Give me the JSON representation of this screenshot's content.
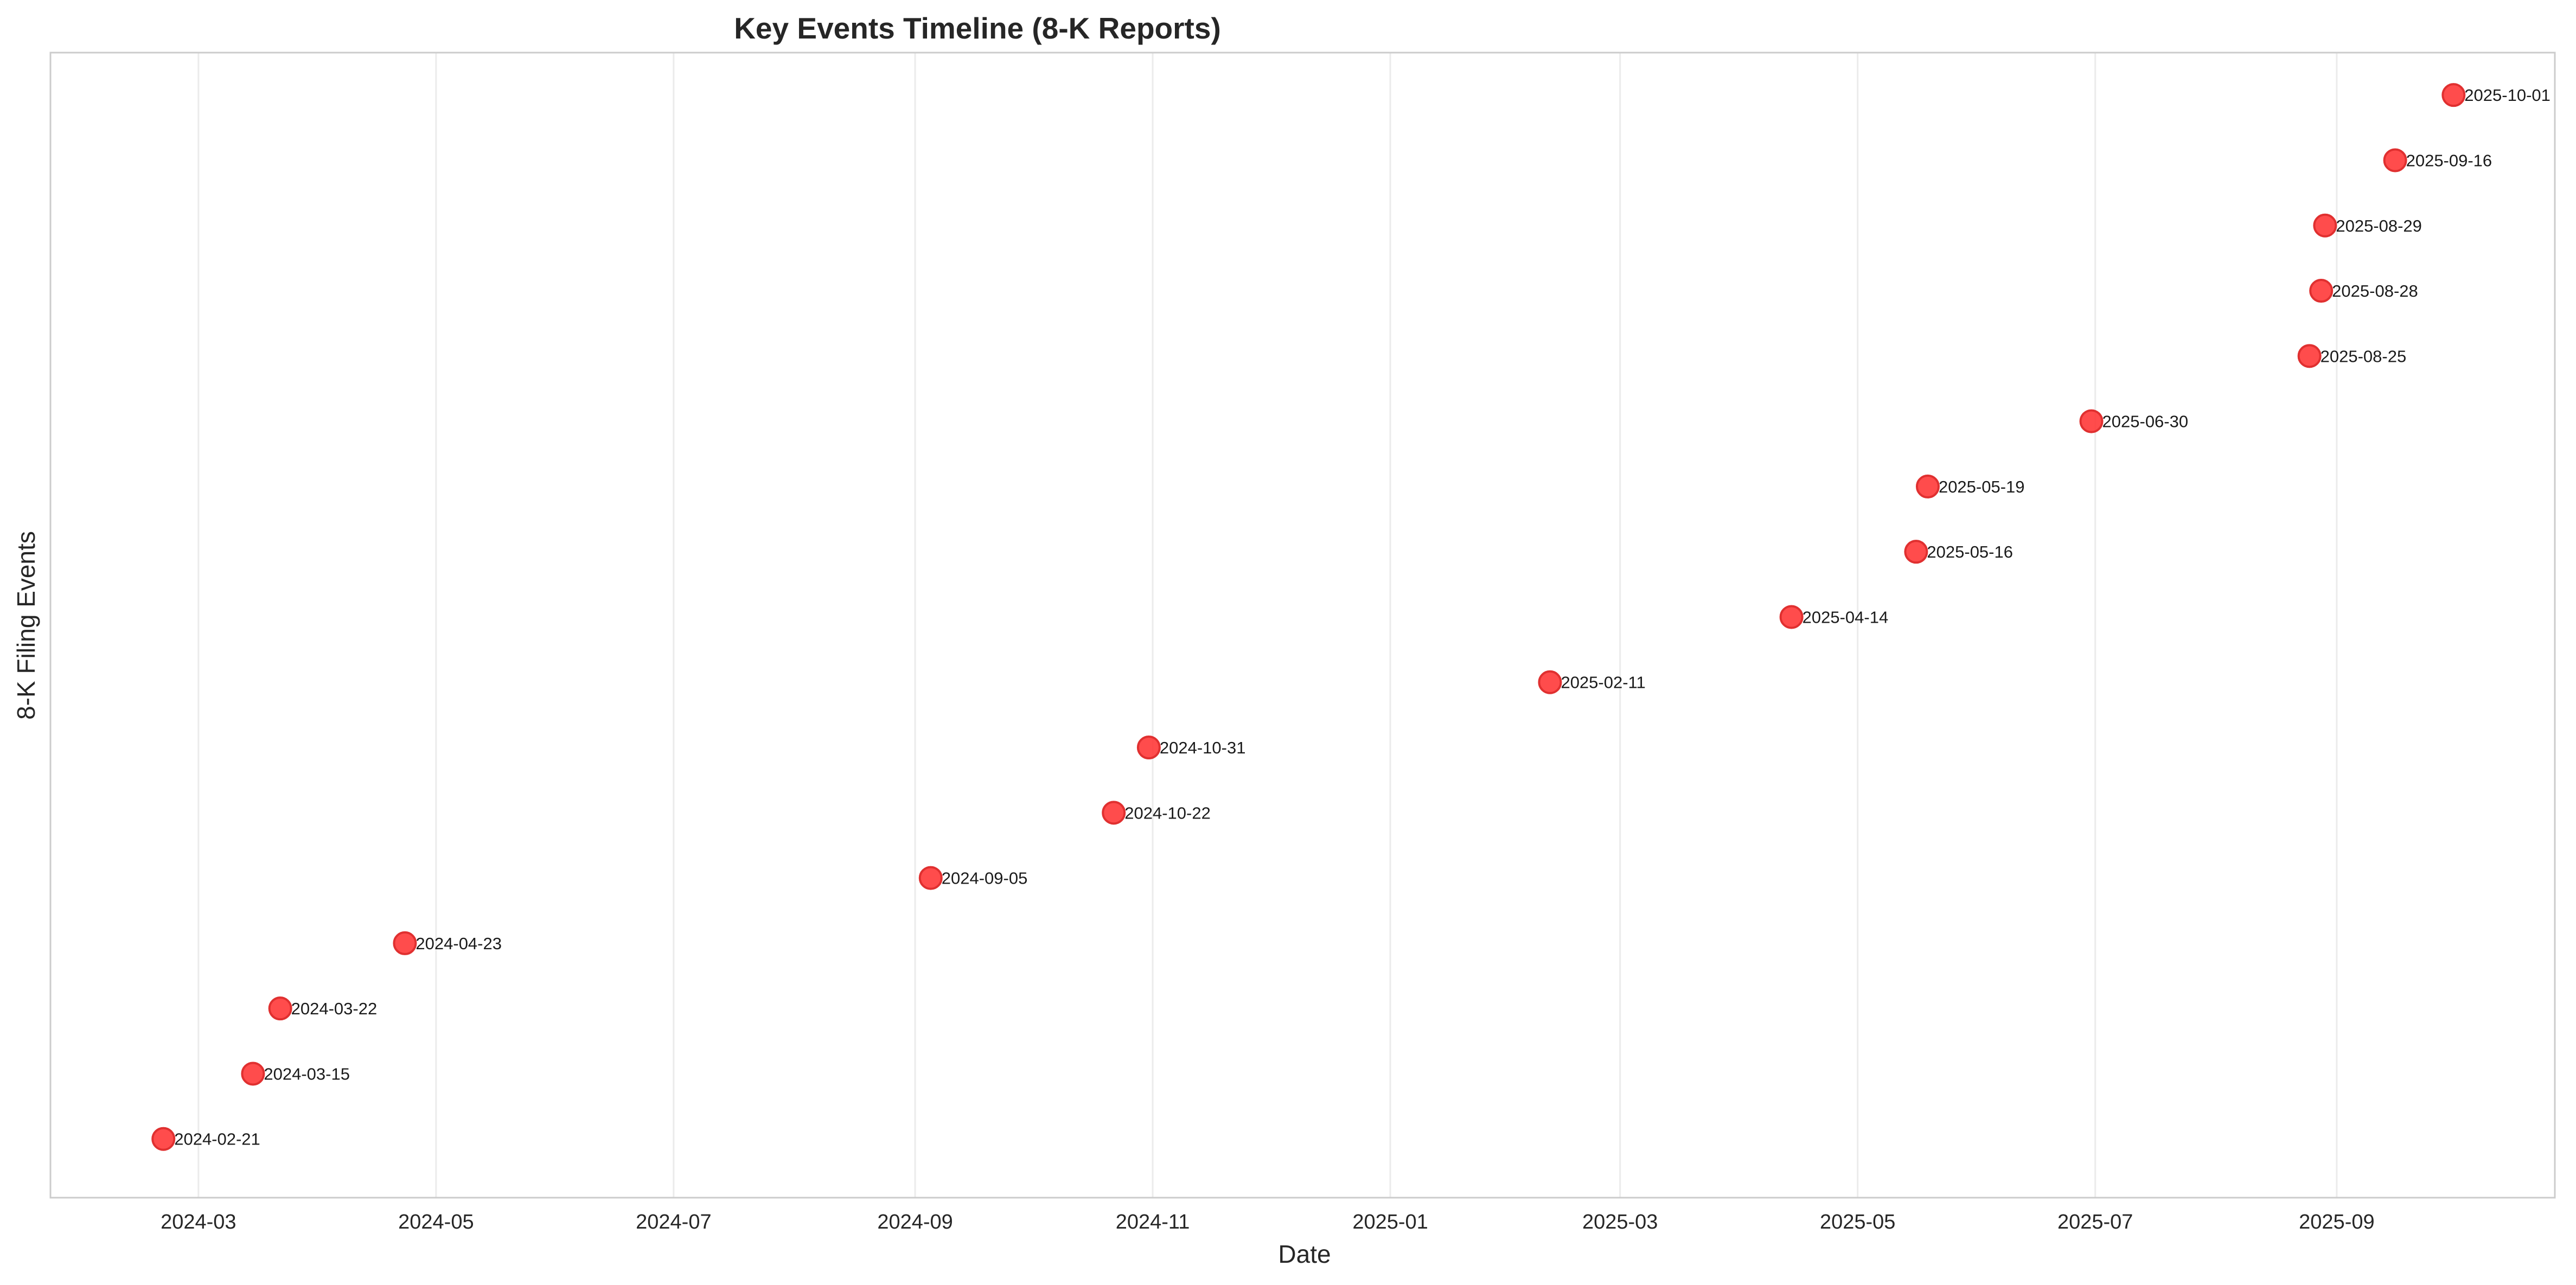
{
  "chart_data": {
    "type": "scatter",
    "title": "Key Events Timeline (8-K Reports)",
    "xlabel": "Date",
    "ylabel": "8-K Filing Events",
    "xlim": [
      "2024-01-23",
      "2025-10-27"
    ],
    "ylim": [
      -0.9,
      16.65
    ],
    "x_ticks": [
      "2024-03",
      "2024-05",
      "2024-07",
      "2024-09",
      "2024-11",
      "2025-01",
      "2025-03",
      "2025-05",
      "2025-07",
      "2025-09"
    ],
    "grid": "vertical",
    "legend": "none",
    "marker_color": "#ff3333",
    "points": [
      {
        "x": "2024-02-21",
        "y": 0,
        "label": "2024-02-21"
      },
      {
        "x": "2024-03-15",
        "y": 1,
        "label": "2024-03-15"
      },
      {
        "x": "2024-03-22",
        "y": 2,
        "label": "2024-03-22"
      },
      {
        "x": "2024-04-23",
        "y": 3,
        "label": "2024-04-23"
      },
      {
        "x": "2024-09-05",
        "y": 4,
        "label": "2024-09-05"
      },
      {
        "x": "2024-10-22",
        "y": 5,
        "label": "2024-10-22"
      },
      {
        "x": "2024-10-31",
        "y": 6,
        "label": "2024-10-31"
      },
      {
        "x": "2025-02-11",
        "y": 7,
        "label": "2025-02-11"
      },
      {
        "x": "2025-04-14",
        "y": 8,
        "label": "2025-04-14"
      },
      {
        "x": "2025-05-16",
        "y": 9,
        "label": "2025-05-16"
      },
      {
        "x": "2025-05-19",
        "y": 10,
        "label": "2025-05-19"
      },
      {
        "x": "2025-06-30",
        "y": 11,
        "label": "2025-06-30"
      },
      {
        "x": "2025-08-25",
        "y": 12,
        "label": "2025-08-25"
      },
      {
        "x": "2025-08-28",
        "y": 13,
        "label": "2025-08-28"
      },
      {
        "x": "2025-08-29",
        "y": 14,
        "label": "2025-08-29"
      },
      {
        "x": "2025-09-16",
        "y": 15,
        "label": "2025-09-16"
      },
      {
        "x": "2025-10-01",
        "y": 16,
        "label": "2025-10-01"
      }
    ]
  }
}
